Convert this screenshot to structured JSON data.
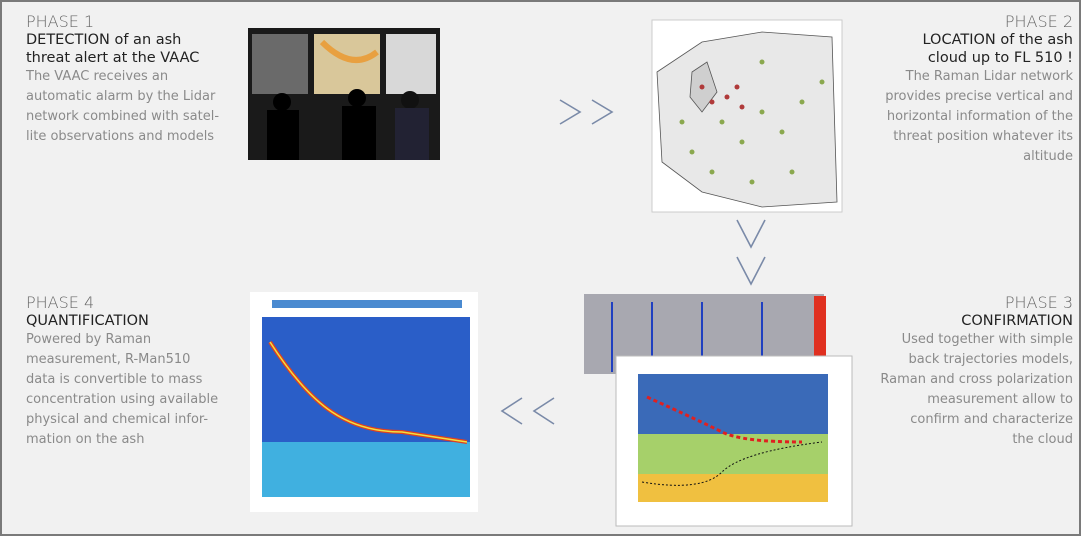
{
  "phases": [
    {
      "heading": "PHASE 1",
      "title": [
        "DETECTION of an ash",
        "threat alert at the VAAC"
      ],
      "body": [
        "The VAAC receives an",
        "automatic alarm by the Lidar",
        "network combined with satel-",
        "lite observations and models"
      ]
    },
    {
      "heading": "PHASE 2",
      "title": [
        "LOCATION of the ash",
        "cloud up to FL 510 !"
      ],
      "body": [
        "The Raman Lidar network",
        "provides precise vertical and",
        "horizontal information of the",
        "threat position whatever its",
        "altitude"
      ]
    },
    {
      "heading": "PHASE 3",
      "title": [
        "CONFIRMATION"
      ],
      "body": [
        "Used together with simple",
        "back trajectories models,",
        "Raman and cross polarization",
        "measurement allow to",
        "confirm and characterize",
        "the cloud"
      ]
    },
    {
      "heading": "PHASE 4",
      "title": [
        "QUANTIFICATION"
      ],
      "body": [
        "Powered by Raman",
        "measurement, R-Man510",
        "data is convertible to mass",
        "concentration using available",
        "physical and chemical infor-",
        "mation on the ash"
      ]
    }
  ]
}
